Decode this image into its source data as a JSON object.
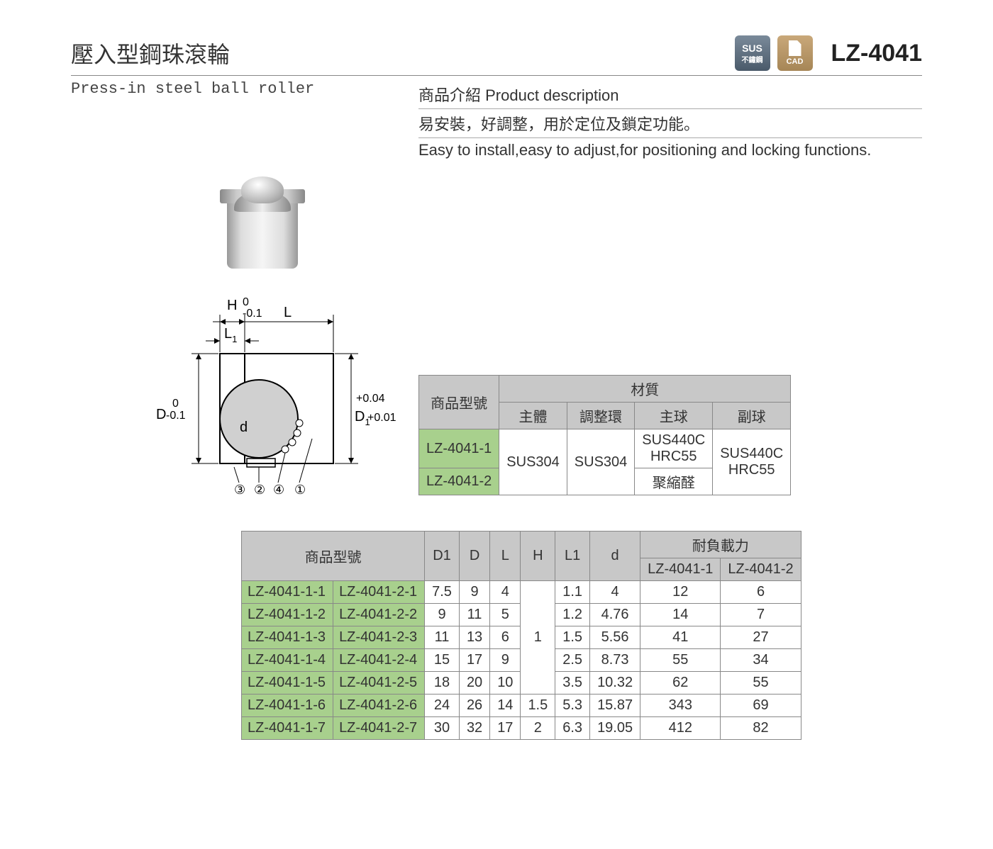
{
  "header": {
    "title_cn": "壓入型鋼珠滾輪",
    "title_en": "Press-in steel ball roller",
    "badge_sus_top": "SUS",
    "badge_sus_bottom": "不鏽鋼",
    "badge_cad": "CAD",
    "part_number": "LZ-4041"
  },
  "description": {
    "heading": "商品介紹 Product description",
    "text_cn": "易安裝，好調整，用於定位及鎖定功能。",
    "text_en": "Easy to install,easy to adjust,for positioning and locking functions."
  },
  "diagram_labels": {
    "H": "H",
    "H_tol_top": "0",
    "H_tol_bot": "-0.1",
    "L": "L",
    "L1": "L",
    "L1_sub": "1",
    "D": "D",
    "D_tol_top": "0",
    "D_tol_bot": "-0.1",
    "D1": "D",
    "D1_sub": "1",
    "D1_tol_top": "+0.04",
    "D1_tol_bot": "+0.01",
    "d": "d",
    "c1": "①",
    "c2": "②",
    "c3": "③",
    "c4": "④"
  },
  "material_table": {
    "header_model": "商品型號",
    "header_material": "材質",
    "sub_headers": [
      "主體",
      "調整環",
      "主球",
      "副球"
    ],
    "rows": [
      {
        "model": "LZ-4041-1",
        "body": "SUS304",
        "ring": "SUS304",
        "main_ball": "SUS440C HRC55",
        "sub_ball": "SUS440C HRC55"
      },
      {
        "model": "LZ-4041-2",
        "body": "SUS304",
        "ring": "SUS304",
        "main_ball": "聚縮醛",
        "sub_ball": "SUS440C HRC55"
      }
    ],
    "colors": {
      "header_bg": "#c8c8c8",
      "model_bg": "#a8d08d",
      "border": "#888888"
    }
  },
  "spec_table": {
    "header_model": "商品型號",
    "columns": [
      "D1",
      "D",
      "L",
      "H",
      "L1",
      "d"
    ],
    "load_header": "耐負載力",
    "load_sub": [
      "LZ-4041-1",
      "LZ-4041-2"
    ],
    "rows": [
      {
        "m1": "LZ-4041-1-1",
        "m2": "LZ-4041-2-1",
        "D1": "7.5",
        "D": "9",
        "L": "4",
        "H": "",
        "L1": "1.1",
        "d": "4",
        "load1": "12",
        "load2": "6"
      },
      {
        "m1": "LZ-4041-1-2",
        "m2": "LZ-4041-2-2",
        "D1": "9",
        "D": "11",
        "L": "5",
        "H": "",
        "L1": "1.2",
        "d": "4.76",
        "load1": "14",
        "load2": "7"
      },
      {
        "m1": "LZ-4041-1-3",
        "m2": "LZ-4041-2-3",
        "D1": "11",
        "D": "13",
        "L": "6",
        "H": "1",
        "L1": "1.5",
        "d": "5.56",
        "load1": "41",
        "load2": "27"
      },
      {
        "m1": "LZ-4041-1-4",
        "m2": "LZ-4041-2-4",
        "D1": "15",
        "D": "17",
        "L": "9",
        "H": "",
        "L1": "2.5",
        "d": "8.73",
        "load1": "55",
        "load2": "34"
      },
      {
        "m1": "LZ-4041-1-5",
        "m2": "LZ-4041-2-5",
        "D1": "18",
        "D": "20",
        "L": "10",
        "H": "",
        "L1": "3.5",
        "d": "10.32",
        "load1": "62",
        "load2": "55"
      },
      {
        "m1": "LZ-4041-1-6",
        "m2": "LZ-4041-2-6",
        "D1": "24",
        "D": "26",
        "L": "14",
        "H": "1.5",
        "L1": "5.3",
        "d": "15.87",
        "load1": "343",
        "load2": "69"
      },
      {
        "m1": "LZ-4041-1-7",
        "m2": "LZ-4041-2-7",
        "D1": "30",
        "D": "32",
        "L": "17",
        "H": "2",
        "L1": "6.3",
        "d": "19.05",
        "load1": "412",
        "load2": "82"
      }
    ],
    "H_merged": "1",
    "colors": {
      "header_bg": "#c8c8c8",
      "model_bg": "#a8d08d",
      "border": "#888888"
    }
  }
}
